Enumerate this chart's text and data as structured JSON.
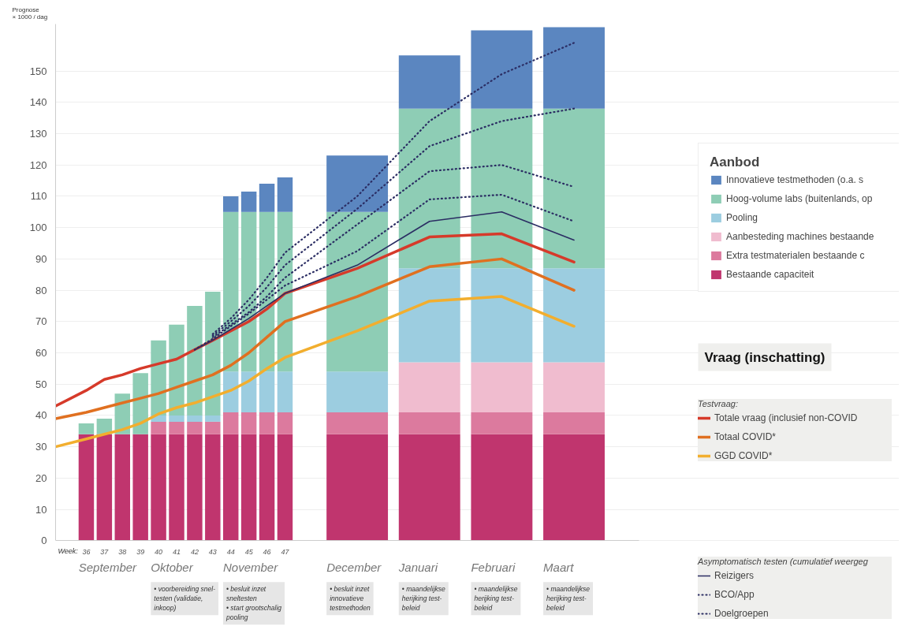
{
  "chart_data": {
    "type": "bar",
    "stacked": true,
    "ylabel": "Prognose\n× 1000 / dag",
    "legend_title": "Aanbod",
    "legend": "right",
    "grid": "y",
    "x": [
      34.3,
      36,
      37,
      38,
      39,
      40,
      41,
      42,
      43,
      44,
      45,
      46,
      47,
      51,
      55,
      59,
      63
    ],
    "xlim": [
      34.3,
      66.6
    ],
    "xticks": [
      36,
      37,
      38,
      39,
      40,
      41,
      42,
      43,
      44,
      45,
      46,
      47
    ],
    "ylim": [
      0,
      165
    ],
    "yticks": [
      0,
      10,
      20,
      30,
      40,
      50,
      60,
      70,
      80,
      90,
      100,
      110,
      120,
      130,
      140,
      150
    ],
    "series": [
      {
        "name": "Bestaande capaciteit",
        "color": "#c0356e",
        "values": [
          null,
          34,
          34,
          34,
          34,
          34,
          34,
          34,
          34,
          34,
          34,
          34,
          34,
          34,
          34,
          34,
          34
        ]
      },
      {
        "name": "Extra testmaterialen bestaande c",
        "color": "#dc7a9e",
        "values": [
          null,
          null,
          null,
          null,
          null,
          4,
          4,
          4,
          4,
          7,
          7,
          7,
          7,
          7,
          7,
          7,
          7
        ]
      },
      {
        "name": "Aanbesteding machines bestaande",
        "color": "#f0bccf",
        "values": [
          null,
          null,
          null,
          null,
          null,
          null,
          null,
          null,
          null,
          null,
          null,
          null,
          null,
          null,
          16,
          16,
          16
        ]
      },
      {
        "name": "Pooling",
        "color": "#9ccde0",
        "values": [
          null,
          null,
          null,
          null,
          null,
          2,
          2,
          2,
          2,
          13,
          13,
          13,
          13,
          13,
          30,
          30,
          30
        ]
      },
      {
        "name": "Hoog-volume labs (buitenlands, op",
        "color": "#8ecdb5",
        "values": [
          null,
          3.5,
          5,
          13,
          19.5,
          24,
          29,
          35,
          39.5,
          51,
          51,
          51,
          51,
          51,
          51,
          51,
          51
        ]
      },
      {
        "name": "Innovatieve testmethoden (o.a. s",
        "color": "#5b86c0",
        "values": [
          null,
          null,
          null,
          null,
          null,
          null,
          null,
          null,
          null,
          5,
          6.5,
          9,
          11,
          18,
          17,
          25,
          26
        ]
      },
      {
        "name": "Totale vraag (inclusief non-COVID",
        "type": "line",
        "color": "#d63a2a",
        "line_style": "solid",
        "values": [
          43,
          48,
          51.5,
          53,
          55,
          56.5,
          58,
          61,
          64,
          67,
          70,
          74,
          79,
          87,
          97,
          98,
          89
        ]
      },
      {
        "name": "Totaal COVID*",
        "type": "line",
        "color": "#e07020",
        "line_style": "solid",
        "values": [
          39,
          41,
          42.5,
          44,
          45.5,
          47,
          49,
          51,
          53,
          56,
          60,
          65,
          70,
          78,
          87.5,
          90,
          80
        ]
      },
      {
        "name": "GGD COVID*",
        "type": "line",
        "color": "#f2ae2e",
        "line_style": "solid",
        "values": [
          30,
          32.5,
          34,
          35.5,
          37.5,
          40.5,
          42.5,
          44,
          46,
          48,
          51,
          55,
          58.5,
          67,
          76.5,
          78,
          68.5
        ]
      },
      {
        "name": "Reizigers",
        "type": "line",
        "color": "#2b2d63",
        "line_style": "solid",
        "values": [
          null,
          null,
          null,
          null,
          null,
          null,
          null,
          61,
          64,
          67.5,
          71,
          75,
          79,
          88,
          102,
          105,
          96
        ]
      },
      {
        "name": "BCO/App",
        "type": "line",
        "color": "#2b2d63",
        "line_style": "dotted",
        "values": [
          null,
          null,
          null,
          null,
          null,
          null,
          null,
          61,
          64.5,
          68.5,
          72.5,
          77,
          81.5,
          92.5,
          109,
          110.5,
          102
        ]
      },
      {
        "name": "Doelgroepen",
        "type": "line",
        "color": "#2b2d63",
        "line_style": "dotted",
        "values": [
          null,
          null,
          null,
          null,
          null,
          null,
          null,
          null,
          65,
          69,
          73,
          78,
          84,
          101,
          118,
          120,
          113
        ]
      },
      {
        "type": "line",
        "color": "#2b2d63",
        "line_style": "dotted",
        "values": [
          null,
          null,
          null,
          null,
          null,
          null,
          null,
          null,
          65.5,
          70,
          75,
          81,
          88,
          106,
          126,
          134,
          138
        ]
      },
      {
        "type": "line",
        "color": "#2b2d63",
        "line_style": "dotted",
        "values": [
          null,
          null,
          null,
          null,
          null,
          null,
          null,
          null,
          66,
          71,
          77,
          84,
          92,
          110,
          134,
          149,
          159
        ]
      }
    ],
    "annotations": [
      "Vraag (inschatting)",
      "Testvraag:",
      "Asymptomatisch testen (cumulatief weergeg",
      "Week:",
      "September",
      "Oktober",
      "November",
      "December",
      "Januari",
      "Februari",
      "Maart",
      "• voorbereiding snel-\ntesten (validatie,\ninkoop)",
      "• besluit inzet\nsneltesten\n• start grootschalig\npooling",
      "• besluit inzet\ninnovatieve\ntestmethoden",
      "• maandelijkse\nherijking test-\nbeleid",
      "• maandelijkse\nherijking test-\nbeleid",
      "• maandelijkse\nherijking test-\nbeleid"
    ]
  }
}
